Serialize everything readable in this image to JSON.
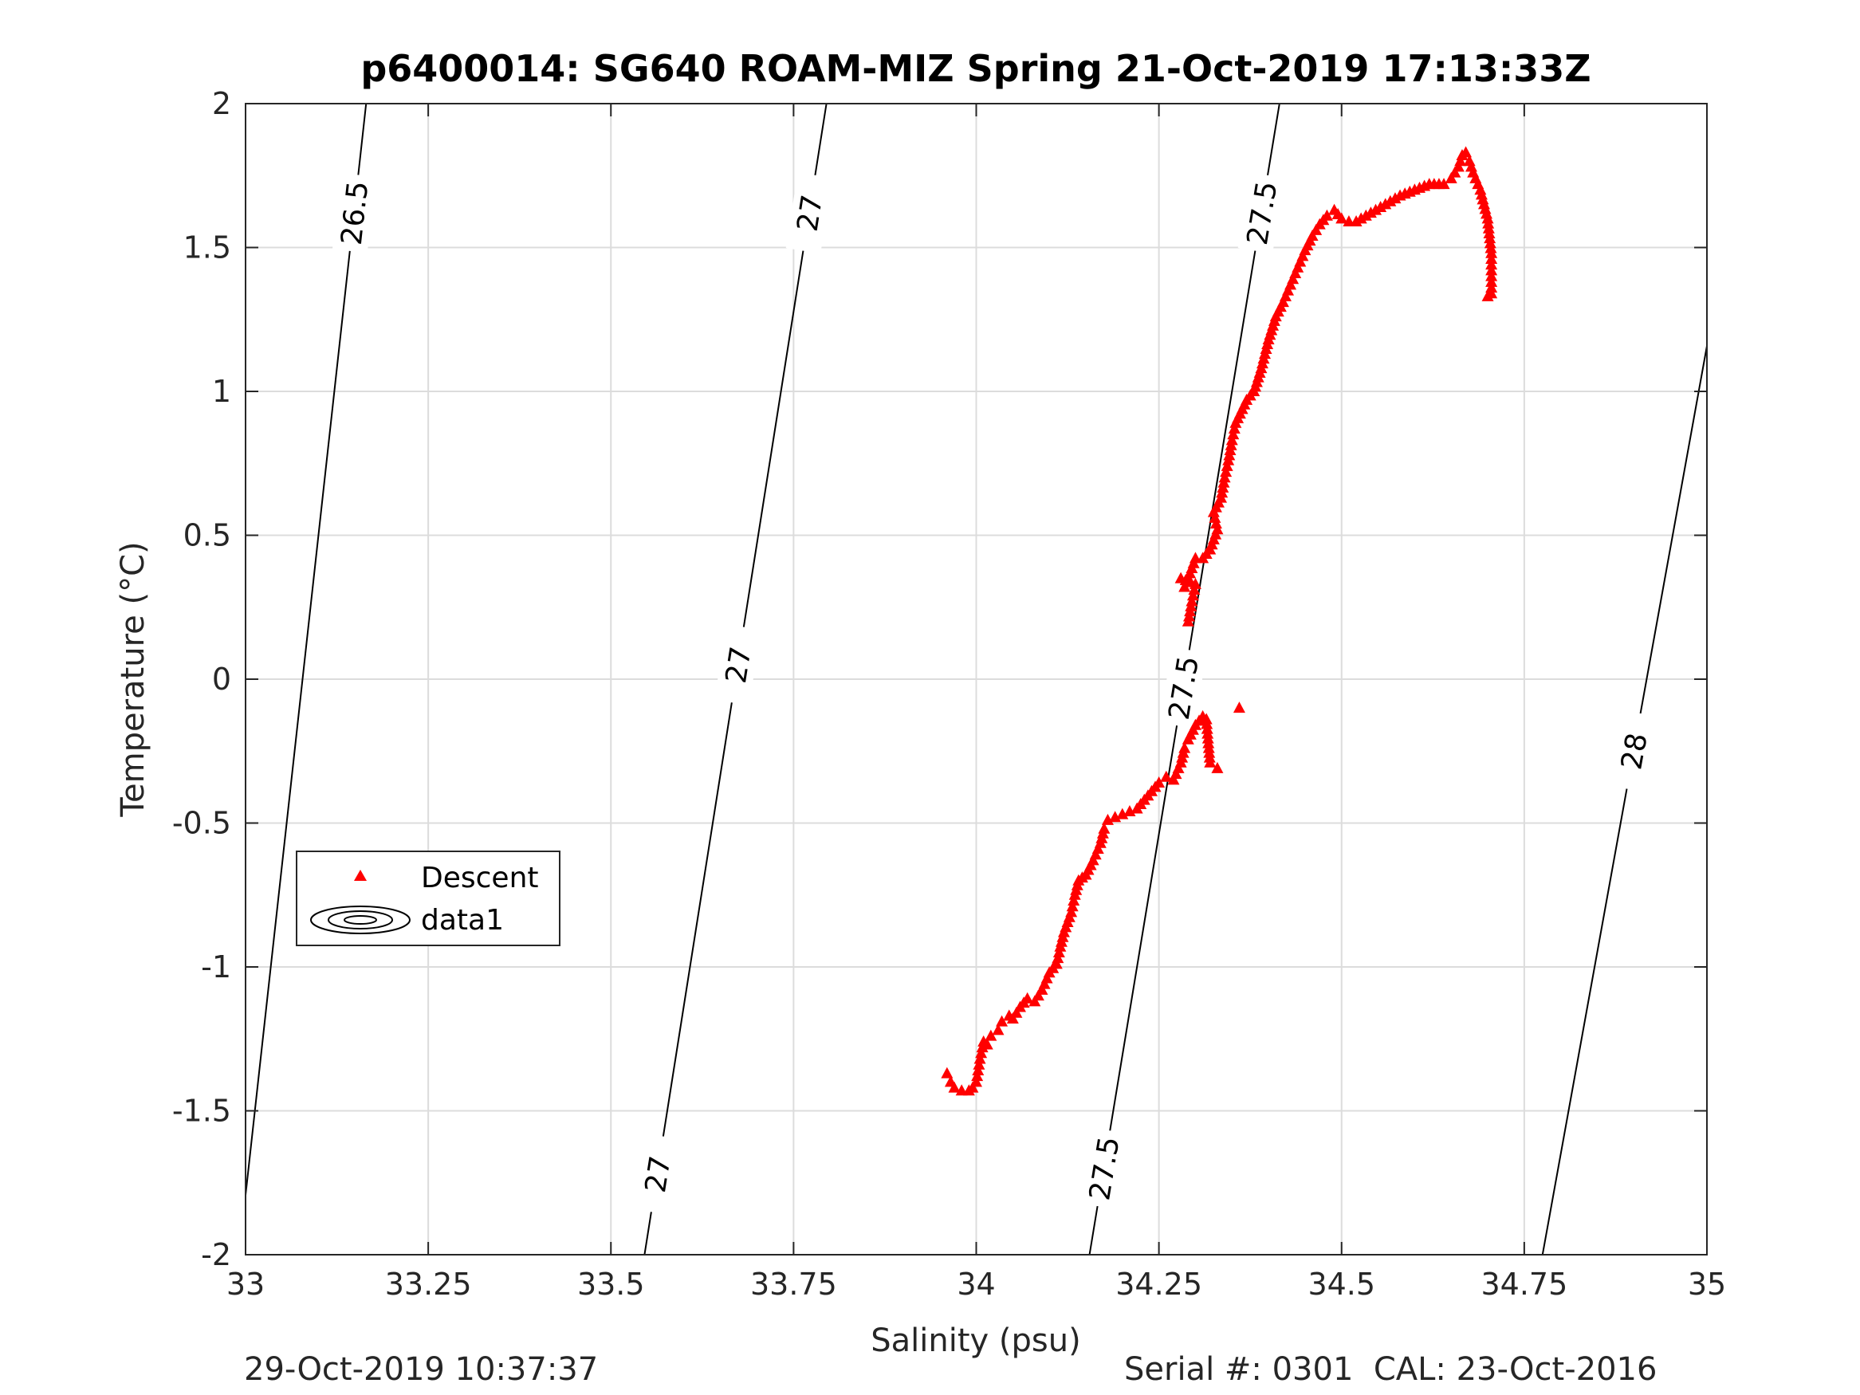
{
  "chart_data": {
    "type": "scatter",
    "title": "p6400014: SG640 ROAM-MIZ Spring 21-Oct-2019 17:13:33Z",
    "xlabel": "Salinity (psu)",
    "ylabel": "Temperature (°C)",
    "xlim": [
      33,
      35
    ],
    "ylim": [
      -2,
      2
    ],
    "xticks": [
      33,
      33.25,
      33.5,
      33.75,
      34,
      34.25,
      34.5,
      34.75,
      35
    ],
    "xtick_labels": [
      "33",
      "33.25",
      "33.5",
      "33.75",
      "34",
      "34.25",
      "34.5",
      "34.75",
      "35"
    ],
    "yticks": [
      -2,
      -1.5,
      -1,
      -0.5,
      0,
      0.5,
      1,
      1.5,
      2
    ],
    "ytick_labels": [
      "-2",
      "-1.5",
      "-1",
      "-0.5",
      "0",
      "0.5",
      "1",
      "1.5",
      "2"
    ],
    "grid": true,
    "legend": {
      "position": "left",
      "entries": [
        "Descent",
        "data1"
      ]
    },
    "series": [
      {
        "name": "Descent",
        "marker": "triangle",
        "color": "#ff0000",
        "x": [
          33.96,
          33.965,
          33.97,
          33.98,
          33.99,
          33.995,
          34.0,
          34.005,
          34.01,
          34.015,
          34.02,
          34.03,
          34.035,
          34.045,
          34.05,
          34.06,
          34.07,
          34.08,
          34.09,
          34.1,
          34.11,
          34.115,
          34.12,
          34.13,
          34.135,
          34.14,
          34.145,
          34.15,
          34.16,
          34.17,
          34.175,
          34.18,
          34.19,
          34.2,
          34.21,
          34.22,
          34.23,
          34.24,
          34.25,
          34.26,
          34.27,
          34.28,
          34.285,
          34.29,
          34.3,
          34.31,
          34.315,
          34.32,
          34.33,
          34.36,
          34.29,
          34.295,
          34.3,
          34.28,
          34.285,
          34.29,
          34.3,
          34.31,
          34.32,
          34.33,
          34.325,
          34.335,
          34.34,
          34.345,
          34.35,
          34.355,
          34.37,
          34.38,
          34.39,
          34.4,
          34.41,
          34.42,
          34.43,
          34.44,
          34.45,
          34.46,
          34.47,
          34.48,
          34.49,
          34.5,
          34.51,
          34.52,
          34.54,
          34.56,
          34.58,
          34.6,
          34.62,
          34.64,
          34.65,
          34.66,
          34.665,
          34.67,
          34.675,
          34.68,
          34.69,
          34.7,
          34.705,
          34.705,
          34.705,
          34.7
        ],
        "y": [
          -1.37,
          -1.4,
          -1.42,
          -1.43,
          -1.43,
          -1.42,
          -1.4,
          -1.32,
          -1.26,
          -1.27,
          -1.24,
          -1.22,
          -1.19,
          -1.17,
          -1.18,
          -1.14,
          -1.11,
          -1.12,
          -1.08,
          -1.02,
          -0.99,
          -0.93,
          -0.88,
          -0.81,
          -0.75,
          -0.7,
          -0.69,
          -0.68,
          -0.63,
          -0.57,
          -0.52,
          -0.49,
          -0.48,
          -0.47,
          -0.46,
          -0.45,
          -0.42,
          -0.39,
          -0.36,
          -0.34,
          -0.35,
          -0.29,
          -0.24,
          -0.21,
          -0.16,
          -0.13,
          -0.14,
          -0.29,
          -0.31,
          -0.1,
          0.2,
          0.27,
          0.33,
          0.35,
          0.32,
          0.35,
          0.42,
          0.42,
          0.45,
          0.52,
          0.58,
          0.63,
          0.7,
          0.76,
          0.83,
          0.89,
          0.97,
          1.0,
          1.08,
          1.18,
          1.26,
          1.31,
          1.37,
          1.43,
          1.49,
          1.54,
          1.58,
          1.61,
          1.63,
          1.6,
          1.59,
          1.59,
          1.62,
          1.65,
          1.68,
          1.7,
          1.72,
          1.72,
          1.74,
          1.78,
          1.82,
          1.83,
          1.8,
          1.76,
          1.7,
          1.6,
          1.48,
          1.4,
          1.34,
          1.33
        ]
      },
      {
        "name": "data1",
        "type": "contour",
        "color": "#000000",
        "levels": [
          26.5,
          27,
          27.5,
          28
        ],
        "level_labels": [
          "26.5",
          "27",
          "27.5",
          "28"
        ]
      }
    ]
  },
  "footer": {
    "left": "29-Oct-2019 10:37:37",
    "right": "Serial #: 0301  CAL: 23-Oct-2016"
  }
}
